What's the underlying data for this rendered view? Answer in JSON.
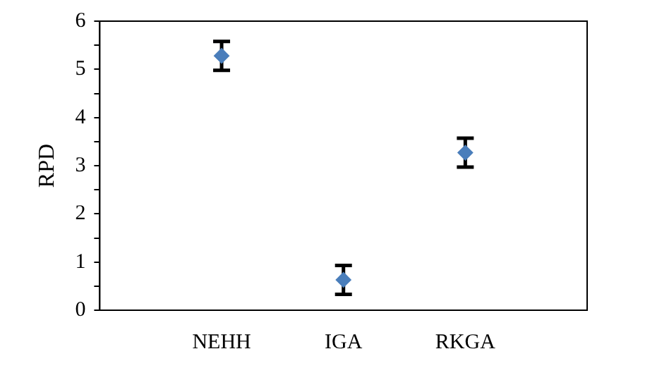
{
  "chart_data": {
    "type": "scatter",
    "ylabel": "RPD",
    "categories": [
      "NEHH",
      "IGA",
      "RKGA"
    ],
    "series": [
      {
        "color": "#4a7ebb",
        "values": [
          5.28,
          0.63,
          3.27
        ],
        "errors": [
          0.3,
          0.3,
          0.3
        ]
      }
    ],
    "ylim": [
      0,
      6
    ],
    "yticks": [
      0,
      {
        "value": 0.5,
        "label": null
      },
      1,
      {
        "value": 1.5,
        "label": null
      },
      2,
      {
        "value": 2.5,
        "label": null
      },
      3,
      {
        "value": 3.5,
        "label": null
      },
      4,
      {
        "value": 4.5,
        "label": null
      },
      5,
      {
        "value": 5.5,
        "label": null
      },
      6
    ],
    "marker": "diamond",
    "grid": false,
    "legend": false
  }
}
